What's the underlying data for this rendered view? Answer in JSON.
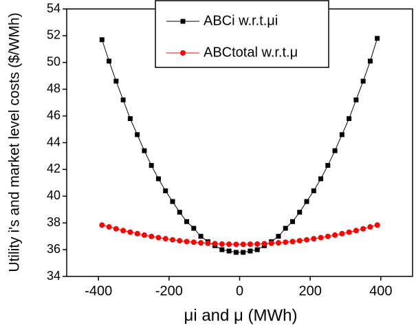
{
  "chart_data": {
    "type": "line",
    "xlabel": "μi and μ (MWh)",
    "ylabel": "Utility i's and market level costs ($/WMh)",
    "x": [
      -390,
      -370,
      -350,
      -330,
      -310,
      -290,
      -270,
      -250,
      -230,
      -210,
      -190,
      -170,
      -150,
      -130,
      -110,
      -90,
      -70,
      -50,
      -30,
      -10,
      10,
      30,
      50,
      70,
      90,
      110,
      130,
      150,
      170,
      190,
      210,
      230,
      250,
      270,
      290,
      310,
      330,
      350,
      370,
      390
    ],
    "series": [
      {
        "name": "ABCi w.r.t.μi",
        "color": "#000000",
        "marker": "square",
        "values": [
          51.7,
          50.1,
          48.6,
          47.2,
          45.8,
          44.6,
          43.4,
          42.3,
          41.3,
          40.4,
          39.6,
          38.8,
          38.1,
          37.6,
          37.0,
          36.6,
          36.3,
          36.0,
          35.9,
          35.8,
          35.8,
          35.9,
          36.0,
          36.3,
          36.6,
          37.0,
          37.6,
          38.1,
          38.8,
          39.6,
          40.4,
          41.3,
          42.3,
          43.4,
          44.6,
          45.8,
          47.2,
          48.6,
          50.1,
          51.8
        ]
      },
      {
        "name": "ABCtotal w.r.t.μ",
        "color": "#ff0000",
        "marker": "circle",
        "values": [
          37.84,
          37.7,
          37.56,
          37.43,
          37.31,
          37.2,
          37.09,
          36.99,
          36.9,
          36.82,
          36.74,
          36.67,
          36.61,
          36.56,
          36.51,
          36.48,
          36.45,
          36.42,
          36.41,
          36.4,
          36.4,
          36.41,
          36.42,
          36.45,
          36.48,
          36.51,
          36.56,
          36.61,
          36.67,
          36.74,
          36.82,
          36.9,
          36.99,
          37.09,
          37.2,
          37.31,
          37.43,
          37.56,
          37.7,
          37.84
        ]
      }
    ],
    "xlim": [
      -490,
      490
    ],
    "xticks": [
      -400,
      -200,
      0,
      200,
      400
    ],
    "ylim": [
      34,
      54
    ],
    "yticks": [
      34,
      36,
      38,
      40,
      42,
      44,
      46,
      48,
      50,
      52,
      54
    ],
    "grid": false,
    "legend": "upper center"
  }
}
